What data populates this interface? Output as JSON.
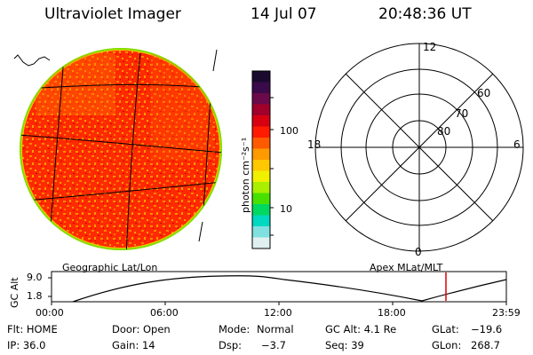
{
  "header": {
    "title": "Ultraviolet Imager",
    "date": "14 Jul 07",
    "time": "20:48:36 UT"
  },
  "colorbar": {
    "unit_label": "photon cm⁻²s⁻¹",
    "ticks": [
      "100",
      "10"
    ],
    "colors": [
      "#1a0a2e",
      "#3a0a4a",
      "#6a0a4a",
      "#a0002a",
      "#d80010",
      "#ff1a00",
      "#ff5a00",
      "#ff9a00",
      "#ffc800",
      "#f0f000",
      "#a8f000",
      "#48e000",
      "#00d860",
      "#00d8c0",
      "#80e0e0",
      "#e0f0f0"
    ]
  },
  "left_panel": {
    "caption": "Geographic Lat/Lon"
  },
  "right_panel": {
    "caption": "Apex MLat/MLT",
    "mlt_labels": {
      "top": "12",
      "left": "18",
      "right": "6",
      "bottom": "0"
    },
    "lat_labels": [
      "60",
      "70",
      "80"
    ]
  },
  "timeline": {
    "ylabel": "GC Alt",
    "yticks": [
      "9.0",
      "1.8"
    ],
    "xticks": [
      "00:00",
      "06:00",
      "12:00",
      "18:00",
      "23:59"
    ],
    "marker_color": "#e00000"
  },
  "info": {
    "flt": "Flt: HOME",
    "door": "Door: Open",
    "mode_label": "Mode:",
    "mode_value": "Normal",
    "gcalt": "GC Alt: 4.1 Re",
    "glat_label": "GLat:",
    "glat_value": "−19.6",
    "ip": "IP: 36.0",
    "gain": "Gain: 14",
    "dsp_label": "Dsp:",
    "dsp_value": "−3.7",
    "seq": "Seq: 39",
    "glon_label": "GLon:",
    "glon_value": "268.7"
  }
}
